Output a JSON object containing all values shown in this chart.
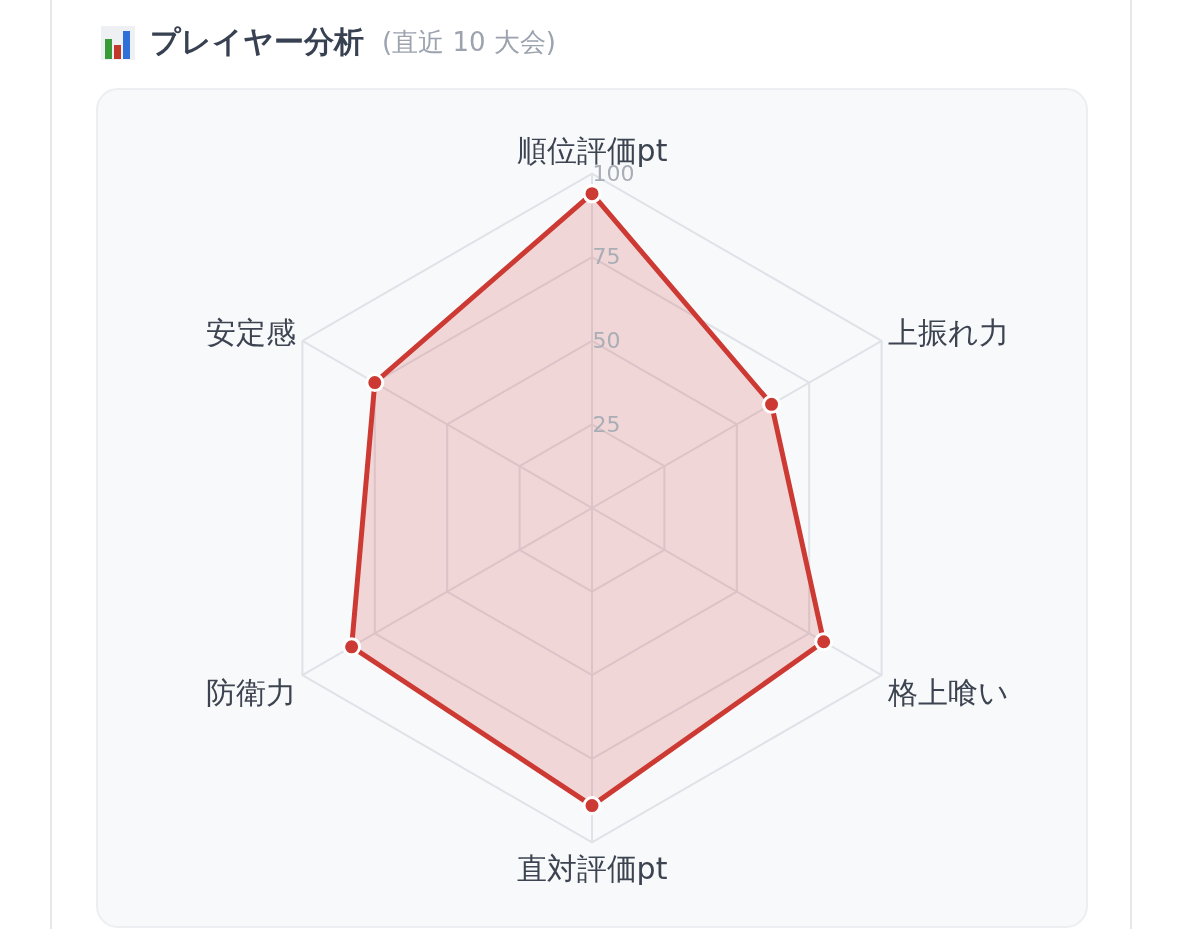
{
  "chart_data": {
    "type": "radar",
    "title": "プレイヤー分析",
    "subtitle": "(直近 10 大会)",
    "categories": [
      "順位評価pt",
      "上振れ力",
      "格上喰い",
      "直対評価pt",
      "防衛力",
      "安定感"
    ],
    "series": [
      {
        "color": "#cc3a33",
        "values": [
          94,
          62,
          80,
          89,
          83,
          75
        ]
      }
    ],
    "ylim": [
      0,
      100
    ],
    "yticks": [
      25,
      50,
      75,
      100
    ],
    "grid": true,
    "marker": "circle"
  }
}
